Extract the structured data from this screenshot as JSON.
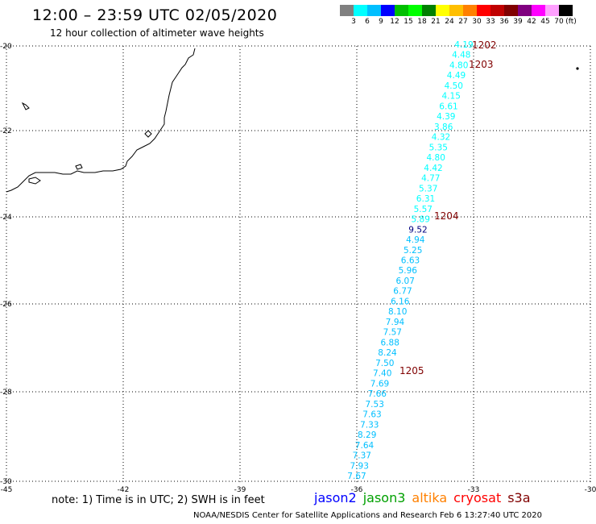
{
  "header": {
    "title": "12:00 – 23:59 UTC 02/05/2020",
    "subtitle": "12 hour collection of altimeter wave heights"
  },
  "legend": {
    "unit": "(ft)",
    "colors": [
      "#808080",
      "#00ffff",
      "#00bfff",
      "#0000ff",
      "#00bf00",
      "#00ff00",
      "#008000",
      "#ffff00",
      "#ffbf00",
      "#ff8000",
      "#ff0000",
      "#c00000",
      "#800000",
      "#800080",
      "#ff00ff",
      "#ffa0ff",
      "#000000"
    ],
    "labels": [
      "3",
      "6",
      "9",
      "12",
      "15",
      "18",
      "21",
      "24",
      "27",
      "30",
      "33",
      "36",
      "39",
      "42",
      "45",
      "70"
    ]
  },
  "axes": {
    "lon_ticks": [
      "-45",
      "-42",
      "-39",
      "-36",
      "-33",
      "-30"
    ],
    "lat_ticks": [
      "-20",
      "-22",
      "-24",
      "-26",
      "-28",
      "-30"
    ]
  },
  "pass_labels": [
    "1202",
    "1203",
    "1204",
    "1205"
  ],
  "track": [
    {
      "v": "4.19",
      "c": "#00ffff"
    },
    {
      "v": "4.48",
      "c": "#00ffff"
    },
    {
      "v": "4.80",
      "c": "#00ffff"
    },
    {
      "v": "4.49",
      "c": "#00ffff"
    },
    {
      "v": "4.50",
      "c": "#00ffff"
    },
    {
      "v": "4.15",
      "c": "#00ffff"
    },
    {
      "v": "6.61",
      "c": "#00ffff"
    },
    {
      "v": "4.39",
      "c": "#00ffff"
    },
    {
      "v": "3.86",
      "c": "#00ffff"
    },
    {
      "v": "4.32",
      "c": "#00ffff"
    },
    {
      "v": "5.35",
      "c": "#00ffff"
    },
    {
      "v": "4.80",
      "c": "#00ffff"
    },
    {
      "v": "4.42",
      "c": "#00ffff"
    },
    {
      "v": "4.77",
      "c": "#00ffff"
    },
    {
      "v": "5.37",
      "c": "#00ffff"
    },
    {
      "v": "6.31",
      "c": "#00ffff"
    },
    {
      "v": "5.57",
      "c": "#00ffff"
    },
    {
      "v": "5.89",
      "c": "#00ffff"
    },
    {
      "v": "9.52",
      "c": "#000080"
    },
    {
      "v": "4.94",
      "c": "#00bfff"
    },
    {
      "v": "5.25",
      "c": "#00bfff"
    },
    {
      "v": "6.63",
      "c": "#00bfff"
    },
    {
      "v": "5.96",
      "c": "#00bfff"
    },
    {
      "v": "6.07",
      "c": "#00bfff"
    },
    {
      "v": "6.77",
      "c": "#00bfff"
    },
    {
      "v": "6.16",
      "c": "#00bfff"
    },
    {
      "v": "8.10",
      "c": "#00bfff"
    },
    {
      "v": "7.94",
      "c": "#00bfff"
    },
    {
      "v": "7.57",
      "c": "#00bfff"
    },
    {
      "v": "6.88",
      "c": "#00bfff"
    },
    {
      "v": "8.24",
      "c": "#00bfff"
    },
    {
      "v": "7.50",
      "c": "#00bfff"
    },
    {
      "v": "7.40",
      "c": "#00bfff"
    },
    {
      "v": "7.69",
      "c": "#00bfff"
    },
    {
      "v": "7.66",
      "c": "#00bfff"
    },
    {
      "v": "7.53",
      "c": "#00bfff"
    },
    {
      "v": "7.63",
      "c": "#00bfff"
    },
    {
      "v": "7.33",
      "c": "#00bfff"
    },
    {
      "v": "8.29",
      "c": "#00bfff"
    },
    {
      "v": "7.64",
      "c": "#00bfff"
    },
    {
      "v": "7.37",
      "c": "#00bfff"
    },
    {
      "v": "7.93",
      "c": "#00bfff"
    },
    {
      "v": "7.67",
      "c": "#00bfff"
    }
  ],
  "footer": {
    "note": "note:  1) Time is in UTC;  2) SWH is in feet",
    "satellites": [
      {
        "name": "jason2",
        "color": "#0000ff"
      },
      {
        "name": "jason3",
        "color": "#00a000"
      },
      {
        "name": "altika",
        "color": "#ff8000"
      },
      {
        "name": "cryosat",
        "color": "#ff0000"
      },
      {
        "name": "s3a",
        "color": "#800000"
      }
    ],
    "credit": "NOAA/NESDIS Center for Satellite Applications and Research     Feb  6 13:27:40 UTC 2020"
  }
}
